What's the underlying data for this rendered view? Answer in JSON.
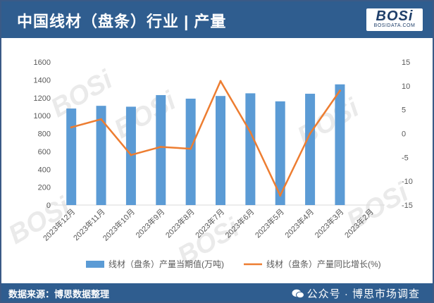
{
  "header": {
    "title": "中国线材（盘条）行业 | 产量",
    "logo_text": "BOSi",
    "logo_sub": "BOSIDATA.COM"
  },
  "footer": {
    "source": "数据来源：博思数据整理",
    "wechat": "公众号 · 博思市场调查"
  },
  "watermark": {
    "text": "BOSi"
  },
  "colors": {
    "header_bg": "#2f5d8f",
    "bar": "#5b9bd5",
    "line": "#ed7d31",
    "axis_text": "#595959"
  },
  "chart_data": {
    "type": "bar",
    "categories": [
      "2023年12月",
      "2023年11月",
      "2023年10月",
      "2023年9月",
      "2023年8月",
      "2023年7月",
      "2023年6月",
      "2023年5月",
      "2023年4月",
      "2023年3月",
      "2023年2月"
    ],
    "series": [
      {
        "name": "线材（盘条）产量当期值(万吨)",
        "type": "bar",
        "axis": "left",
        "values": [
          1080,
          1110,
          1100,
          1230,
          1190,
          1220,
          1250,
          1160,
          1245,
          1350,
          null
        ]
      },
      {
        "name": "线材（盘条）产量同比增长(%)",
        "type": "line",
        "axis": "right",
        "values": [
          1.3,
          3,
          -4.5,
          -2.8,
          -3.2,
          11,
          0.3,
          -13,
          0,
          9,
          null
        ]
      }
    ],
    "y_left": {
      "min": 0,
      "max": 1600,
      "ticks": [
        0,
        200,
        400,
        600,
        800,
        1000,
        1200,
        1400,
        1600
      ]
    },
    "y_right": {
      "min": -15,
      "max": 15,
      "ticks": [
        -15,
        -10,
        -5,
        0,
        5,
        10,
        15
      ]
    },
    "legend_position": "bottom",
    "grid": false
  }
}
